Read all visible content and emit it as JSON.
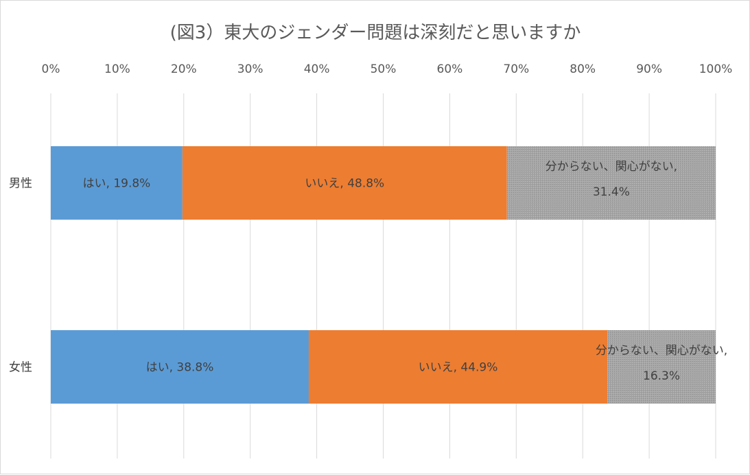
{
  "chart_data": {
    "type": "bar",
    "orientation": "horizontal",
    "stacked": "percent",
    "title": "(図3）東大のジェンダー問題は深刻だと思いますか",
    "categories": [
      "男性",
      "女性"
    ],
    "series": [
      {
        "name": "はい",
        "values": [
          19.8,
          38.8
        ],
        "color": "#5b9bd5",
        "data_labels": [
          "はい, 19.8%",
          "はい, 38.8%"
        ]
      },
      {
        "name": "いいえ",
        "values": [
          48.8,
          44.9
        ],
        "color": "#ed7d31",
        "data_labels": [
          "いいえ, 48.8%",
          "いいえ, 44.9%"
        ]
      },
      {
        "name": "分からない、関心がない",
        "values": [
          31.4,
          16.3
        ],
        "color": "#a5a5a5",
        "data_labels": [
          [
            "分からない、関心がない,",
            "31.4%"
          ],
          [
            "分からない、関心がない,",
            "16.3%"
          ]
        ]
      }
    ],
    "xlim": [
      0,
      100
    ],
    "xticks": [
      "0%",
      "10%",
      "20%",
      "30%",
      "40%",
      "50%",
      "60%",
      "70%",
      "80%",
      "90%",
      "100%"
    ],
    "x_axis_position": "top",
    "grid": true,
    "legend": "none"
  }
}
